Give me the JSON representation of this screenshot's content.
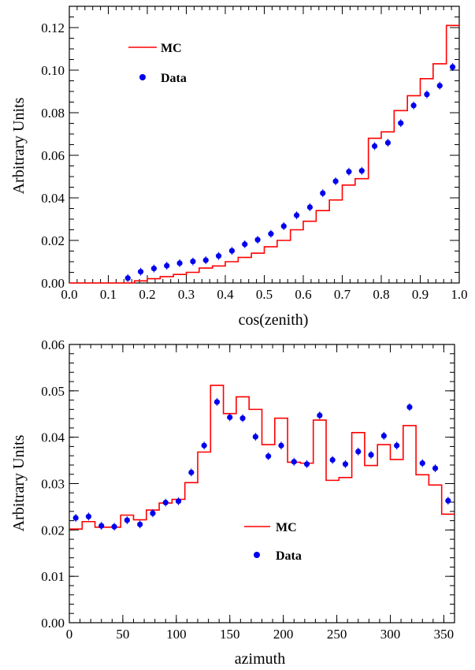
{
  "chart_data": [
    {
      "type": "line",
      "xlabel": "cos(zenith)",
      "ylabel": "Arbitrary Units",
      "xlim": [
        0.0,
        1.0
      ],
      "ylim": [
        0.0,
        0.13
      ],
      "x_ticks": [
        "0.0",
        "0.1",
        "0.2",
        "0.3",
        "0.4",
        "0.5",
        "0.6",
        "0.7",
        "0.8",
        "0.9",
        "1.0"
      ],
      "y_ticks": [
        "0.00",
        "0.02",
        "0.04",
        "0.06",
        "0.08",
        "0.10",
        "0.12"
      ],
      "legend": {
        "position": "top-left",
        "entries": [
          "MC",
          "Data"
        ]
      },
      "grid": false,
      "series": [
        {
          "name": "MC",
          "style": "histogram-step",
          "color": "#ff0000",
          "bin_edges": [
            0.0,
            0.033,
            0.067,
            0.1,
            0.133,
            0.167,
            0.2,
            0.233,
            0.267,
            0.3,
            0.333,
            0.367,
            0.4,
            0.433,
            0.467,
            0.5,
            0.533,
            0.567,
            0.6,
            0.633,
            0.667,
            0.7,
            0.733,
            0.767,
            0.8,
            0.833,
            0.867,
            0.9,
            0.933,
            0.967,
            1.0
          ],
          "values": [
            0.0,
            0.0,
            0.0,
            0.0,
            0.0,
            0.001,
            0.002,
            0.003,
            0.004,
            0.005,
            0.007,
            0.008,
            0.01,
            0.012,
            0.014,
            0.017,
            0.02,
            0.025,
            0.029,
            0.034,
            0.039,
            0.046,
            0.049,
            0.068,
            0.071,
            0.081,
            0.088,
            0.096,
            0.103,
            0.121
          ]
        },
        {
          "name": "Data",
          "style": "markers",
          "color": "#0000ee",
          "x": [
            0.15,
            0.183,
            0.217,
            0.25,
            0.283,
            0.317,
            0.35,
            0.383,
            0.417,
            0.45,
            0.483,
            0.517,
            0.55,
            0.583,
            0.617,
            0.65,
            0.683,
            0.717,
            0.75,
            0.783,
            0.817,
            0.85,
            0.883,
            0.917,
            0.95,
            0.983
          ],
          "y": [
            0.0023,
            0.0053,
            0.0068,
            0.0081,
            0.0093,
            0.0101,
            0.0107,
            0.0127,
            0.0151,
            0.0182,
            0.0203,
            0.0231,
            0.0267,
            0.0318,
            0.0356,
            0.0422,
            0.0478,
            0.0523,
            0.0527,
            0.0643,
            0.0659,
            0.0751,
            0.0834,
            0.0886,
            0.0927,
            0.1015
          ]
        }
      ]
    },
    {
      "type": "line",
      "xlabel": "azimuth",
      "ylabel": "Arbitrary Units",
      "xlim": [
        0,
        360
      ],
      "ylim": [
        0.0,
        0.06
      ],
      "x_ticks": [
        "0",
        "50",
        "100",
        "150",
        "200",
        "250",
        "300",
        "350"
      ],
      "y_ticks": [
        "0.00",
        "0.01",
        "0.02",
        "0.03",
        "0.04",
        "0.05",
        "0.06"
      ],
      "legend": {
        "position": "center",
        "entries": [
          "MC",
          "Data"
        ]
      },
      "grid": false,
      "series": [
        {
          "name": "MC",
          "style": "histogram-step",
          "color": "#ff0000",
          "bin_edges": [
            0,
            12,
            24,
            36,
            48,
            60,
            72,
            84,
            96,
            108,
            120,
            132,
            144,
            156,
            168,
            180,
            192,
            204,
            216,
            228,
            240,
            252,
            264,
            276,
            288,
            300,
            312,
            324,
            336,
            348,
            360
          ],
          "values": [
            0.0202,
            0.0218,
            0.0206,
            0.0206,
            0.0232,
            0.0222,
            0.0243,
            0.0258,
            0.0266,
            0.0302,
            0.0368,
            0.0512,
            0.0451,
            0.0487,
            0.046,
            0.0384,
            0.0441,
            0.0346,
            0.0344,
            0.0437,
            0.0307,
            0.0313,
            0.041,
            0.0339,
            0.0384,
            0.0352,
            0.0425,
            0.0319,
            0.0297,
            0.0234
          ]
        },
        {
          "name": "Data",
          "style": "markers",
          "color": "#0000ee",
          "x": [
            6,
            18,
            30,
            42,
            54,
            66,
            78,
            90,
            102,
            114,
            126,
            138,
            150,
            162,
            174,
            186,
            198,
            210,
            222,
            234,
            246,
            258,
            270,
            282,
            294,
            306,
            318,
            330,
            342,
            354
          ],
          "y": [
            0.0226,
            0.0229,
            0.0209,
            0.0207,
            0.0221,
            0.0212,
            0.0236,
            0.0259,
            0.0262,
            0.0324,
            0.0382,
            0.0476,
            0.0443,
            0.0441,
            0.0401,
            0.0359,
            0.0382,
            0.0347,
            0.0342,
            0.0447,
            0.0351,
            0.0342,
            0.0369,
            0.0362,
            0.0403,
            0.0382,
            0.0465,
            0.0344,
            0.0333,
            0.0263
          ]
        }
      ]
    }
  ]
}
